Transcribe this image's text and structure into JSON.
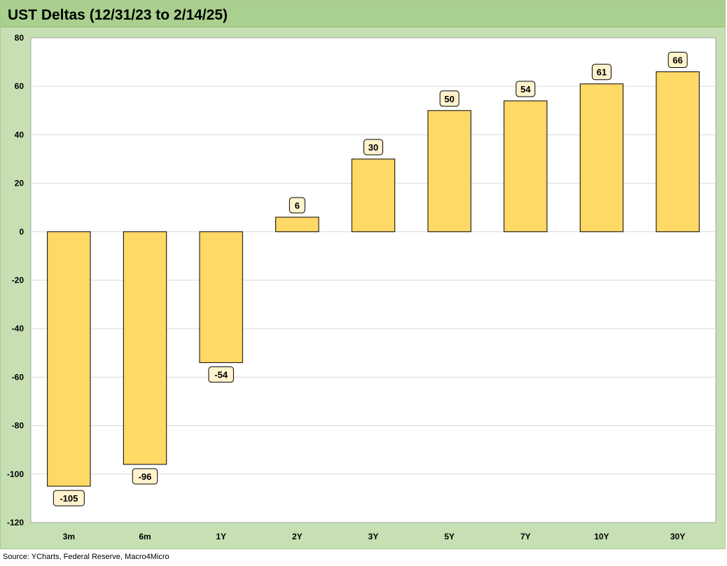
{
  "chart_data": {
    "type": "bar",
    "title": "UST Deltas (12/31/23 to 2/14/25)",
    "xlabel": "",
    "ylabel": "",
    "categories": [
      "3m",
      "6m",
      "1Y",
      "2Y",
      "3Y",
      "5Y",
      "7Y",
      "10Y",
      "30Y"
    ],
    "values": [
      -105,
      -96,
      -54,
      6,
      30,
      50,
      54,
      61,
      66
    ],
    "data_labels": [
      "-105",
      "-96",
      "-54",
      "6",
      "30",
      "50",
      "54",
      "61",
      "66"
    ],
    "ylim": [
      -120,
      80
    ],
    "yticks": [
      80,
      60,
      40,
      20,
      0,
      -20,
      -40,
      -60,
      -80,
      -100,
      -120
    ],
    "grid": true,
    "legend": "none",
    "colors": {
      "bar_fill": "#ffd966",
      "bar_stroke": "#000000",
      "label_fill": "#fff2cc",
      "title_bar": "#a9d08e",
      "frame": "#c6e0b4",
      "plot_bg": "#ffffff",
      "gridline": "#d9d9d9"
    }
  },
  "source": "Source: YCharts, Federal Reserve, Macro4Micro"
}
